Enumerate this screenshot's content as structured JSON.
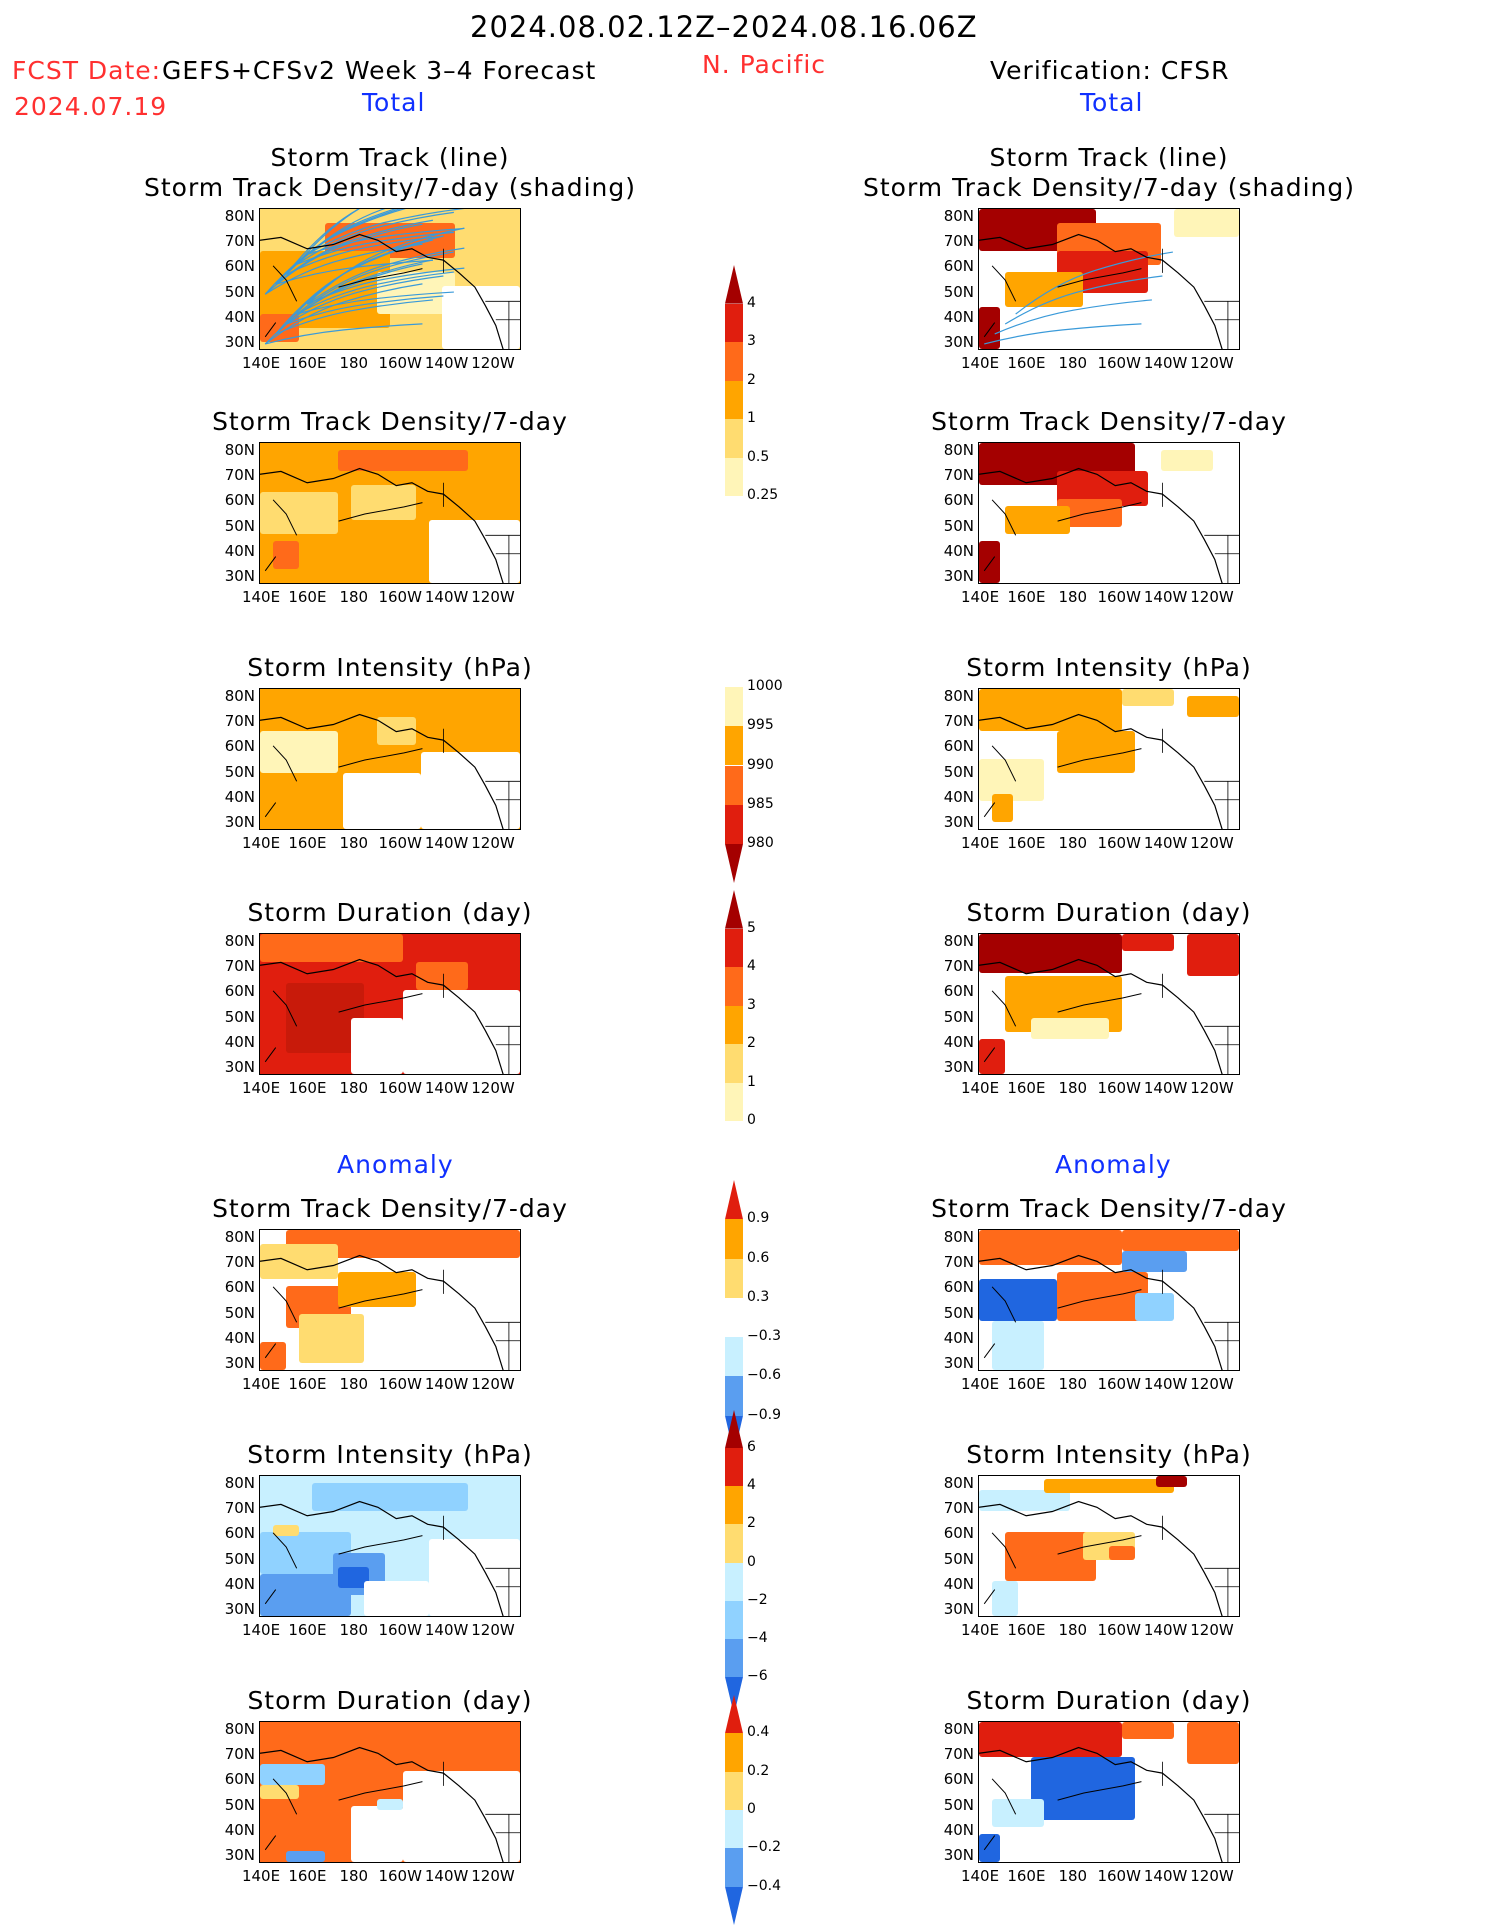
{
  "header": {
    "date_range": "2024.08.02.12Z–2024.08.16.06Z",
    "fcst_label": "FCST Date:",
    "fcst_model": "GEFS+CFSv2 Week 3–4 Forecast",
    "fcst_date": "2024.07.19",
    "region": "N. Pacific",
    "verification": "Verification: CFSR"
  },
  "sections": {
    "total": "Total",
    "anomaly": "Anomaly"
  },
  "panel_titles": {
    "track_line": "Storm Track (line)",
    "track_shading": "Storm Track Density/7-day (shading)",
    "density": "Storm Track Density/7-day",
    "intensity": "Storm Intensity (hPa)",
    "duration": "Storm Duration (day)"
  },
  "axes": {
    "lat_ticks": [
      "80N",
      "70N",
      "60N",
      "50N",
      "40N",
      "30N"
    ],
    "lon_ticks": [
      "140E",
      "160E",
      "180",
      "160W",
      "140W",
      "120W"
    ]
  },
  "colorbars": {
    "density_total": [
      "4",
      "3",
      "2",
      "1",
      "0.5",
      "0.25"
    ],
    "intensity_total": [
      "1000",
      "995",
      "990",
      "985",
      "980"
    ],
    "duration_total": [
      "5",
      "4",
      "3",
      "2",
      "1",
      "0"
    ],
    "density_anom": [
      "0.9",
      "0.6",
      "0.3",
      "−0.3",
      "−0.6",
      "−0.9"
    ],
    "intensity_anom": [
      "6",
      "4",
      "2",
      "0",
      "−2",
      "−4",
      "−6"
    ],
    "duration_anom": [
      "0.4",
      "0.2",
      "0",
      "−0.2",
      "−0.4"
    ]
  },
  "colors": {
    "c1": "#fff5b8",
    "c2": "#ffdc70",
    "c3": "#ffa500",
    "c4": "#ff6a1a",
    "c5": "#e01e0e",
    "c6": "#a40000",
    "b1": "#c8f0ff",
    "b2": "#90d2ff",
    "b3": "#5a9ef0",
    "b4": "#2066e0",
    "track": "#3a9ad9"
  }
}
